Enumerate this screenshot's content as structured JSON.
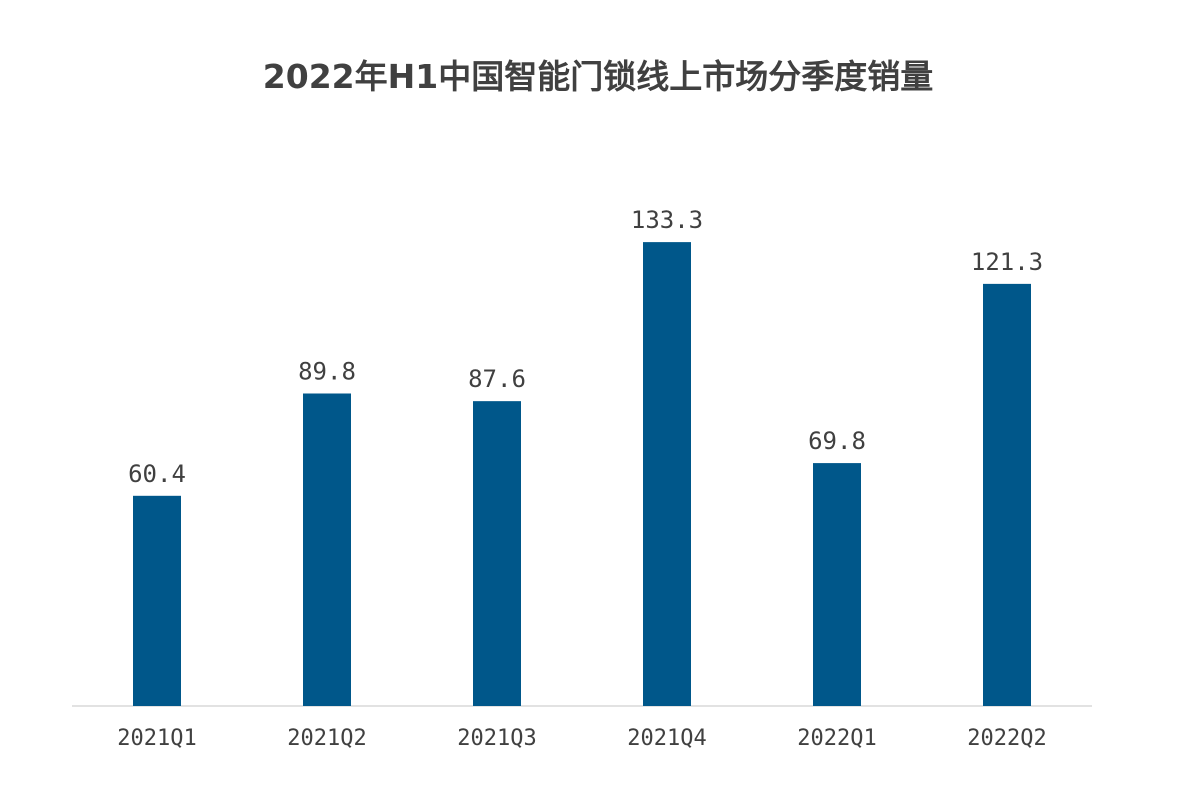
{
  "chart_data": {
    "type": "bar",
    "title": "2022年H1中国智能门锁线上市场分季度销量",
    "categories": [
      "2021Q1",
      "2021Q2",
      "2021Q3",
      "2021Q4",
      "2022Q1",
      "2022Q2"
    ],
    "values": [
      60.4,
      89.8,
      87.6,
      133.3,
      69.8,
      121.3
    ],
    "value_labels": [
      "60.4",
      "89.8",
      "87.6",
      "133.3",
      "69.8",
      "121.3"
    ],
    "ylim": [
      0,
      140
    ],
    "grid": false,
    "legend": "none",
    "bar_color": "#00578a",
    "axis_color": "#d9d9d9"
  }
}
